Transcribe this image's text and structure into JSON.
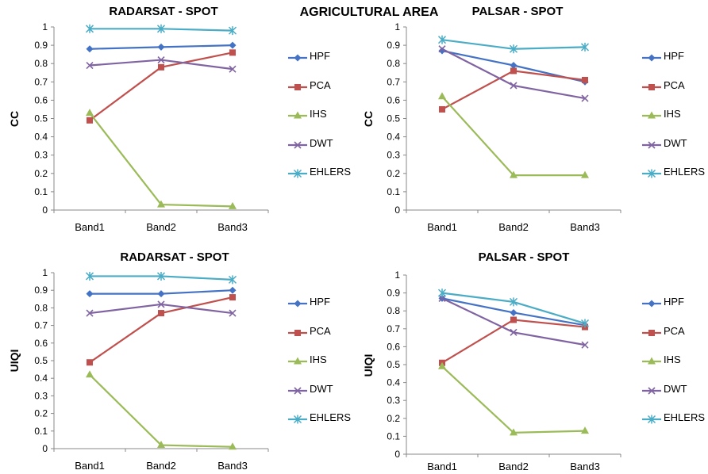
{
  "supertitle": "AGRICULTURAL AREA",
  "series_style": {
    "HPF": {
      "color": "#4472C4",
      "marker": "diamond"
    },
    "PCA": {
      "color": "#C0504D",
      "marker": "square"
    },
    "IHS": {
      "color": "#9BBB59",
      "marker": "triangle"
    },
    "DWT": {
      "color": "#8064A2",
      "marker": "x"
    },
    "EHLERS": {
      "color": "#4BACC6",
      "marker": "star"
    }
  },
  "chart_data": [
    {
      "type": "line",
      "title": "RADARSAT - SPOT",
      "xlabel": "",
      "ylabel": "CC",
      "categories": [
        "Band1",
        "Band2",
        "Band3"
      ],
      "ylim": [
        0,
        1
      ],
      "yticks": [
        "0",
        "0.1",
        "0.2",
        "0.3",
        "0.4",
        "0.5",
        "0.6",
        "0.7",
        "0.8",
        "0.9",
        "1"
      ],
      "grid": false,
      "legend": "right",
      "series": [
        {
          "name": "HPF",
          "values": [
            0.88,
            0.89,
            0.9
          ]
        },
        {
          "name": "PCA",
          "values": [
            0.49,
            0.78,
            0.86
          ]
        },
        {
          "name": "IHS",
          "values": [
            0.53,
            0.03,
            0.02
          ]
        },
        {
          "name": "DWT",
          "values": [
            0.79,
            0.82,
            0.77
          ]
        },
        {
          "name": "EHLERS",
          "values": [
            0.99,
            0.99,
            0.98
          ]
        }
      ]
    },
    {
      "type": "line",
      "title": "PALSAR - SPOT",
      "xlabel": "",
      "ylabel": "CC",
      "categories": [
        "Band1",
        "Band2",
        "Band3"
      ],
      "ylim": [
        0,
        1
      ],
      "yticks": [
        "0",
        "0.1",
        "0.2",
        "0.3",
        "0.4",
        "0.5",
        "0.6",
        "0.7",
        "0.8",
        "0.9",
        "1"
      ],
      "grid": false,
      "legend": "right",
      "series": [
        {
          "name": "HPF",
          "values": [
            0.87,
            0.79,
            0.7
          ]
        },
        {
          "name": "PCA",
          "values": [
            0.55,
            0.76,
            0.71
          ]
        },
        {
          "name": "IHS",
          "values": [
            0.62,
            0.19,
            0.19
          ]
        },
        {
          "name": "DWT",
          "values": [
            0.88,
            0.68,
            0.61
          ]
        },
        {
          "name": "EHLERS",
          "values": [
            0.93,
            0.88,
            0.89
          ]
        }
      ]
    },
    {
      "type": "line",
      "title": "RADARSAT - SPOT",
      "xlabel": "",
      "ylabel": "UIQI",
      "categories": [
        "Band1",
        "Band2",
        "Band3"
      ],
      "ylim": [
        0,
        1
      ],
      "yticks": [
        "0",
        "0.1",
        "0.2",
        "0.3",
        "0.4",
        "0.5",
        "0.6",
        "0.7",
        "0.8",
        "0.9",
        "1"
      ],
      "grid": false,
      "legend": "right",
      "series": [
        {
          "name": "HPF",
          "values": [
            0.88,
            0.88,
            0.9
          ]
        },
        {
          "name": "PCA",
          "values": [
            0.49,
            0.77,
            0.86
          ]
        },
        {
          "name": "IHS",
          "values": [
            0.42,
            0.02,
            0.01
          ]
        },
        {
          "name": "DWT",
          "values": [
            0.77,
            0.82,
            0.77
          ]
        },
        {
          "name": "EHLERS",
          "values": [
            0.98,
            0.98,
            0.96
          ]
        }
      ]
    },
    {
      "type": "line",
      "title": "PALSAR - SPOT",
      "xlabel": "",
      "ylabel": "UIQI",
      "categories": [
        "Band1",
        "Band2",
        "Band3"
      ],
      "ylim": [
        0,
        1
      ],
      "yticks": [
        "0",
        "0.1",
        "0.2",
        "0.3",
        "0.4",
        "0.5",
        "0.6",
        "0.7",
        "0.8",
        "0.9",
        "1"
      ],
      "grid": false,
      "legend": "right",
      "series": [
        {
          "name": "HPF",
          "values": [
            0.87,
            0.79,
            0.72
          ]
        },
        {
          "name": "PCA",
          "values": [
            0.51,
            0.75,
            0.71
          ]
        },
        {
          "name": "IHS",
          "values": [
            0.49,
            0.12,
            0.13
          ]
        },
        {
          "name": "DWT",
          "values": [
            0.87,
            0.68,
            0.61
          ]
        },
        {
          "name": "EHLERS",
          "values": [
            0.9,
            0.85,
            0.73
          ]
        }
      ]
    }
  ]
}
